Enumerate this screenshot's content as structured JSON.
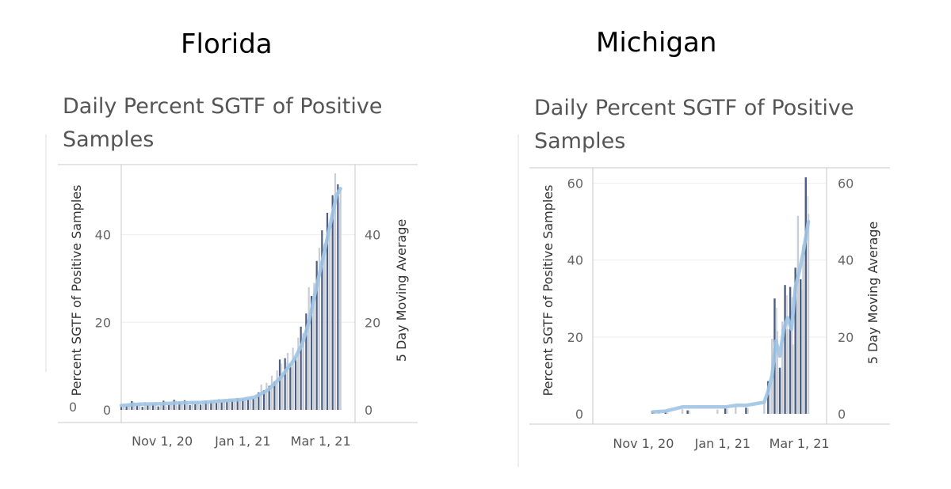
{
  "panels": [
    {
      "state": "Florida"
    },
    {
      "state": "Michigan"
    }
  ],
  "chart_data": [
    {
      "type": "bar",
      "state": "Florida",
      "title": "Daily Percent SGTF of Positive Samples",
      "ylabel": "Percent SGTF of Positive Samples",
      "ylabel_right": "5 Day Moving Average",
      "ylim": [
        0,
        56
      ],
      "yticks": [
        0,
        20,
        40
      ],
      "x_start": "2020-10-01",
      "x_end": "2021-03-27",
      "xticks": [
        {
          "date": "2020-11-01",
          "label": "Nov 1, 20"
        },
        {
          "date": "2021-01-01",
          "label": "Jan 1, 21"
        },
        {
          "date": "2021-03-01",
          "label": "Mar 1, 21"
        }
      ],
      "bars": [
        {
          "date": "2020-10-01",
          "value": 0.8
        },
        {
          "date": "2020-10-03",
          "value": 1.2
        },
        {
          "date": "2020-10-05",
          "value": 0.9
        },
        {
          "date": "2020-10-07",
          "value": 1.5
        },
        {
          "date": "2020-10-09",
          "value": 2.0
        },
        {
          "date": "2020-10-11",
          "value": 1.4
        },
        {
          "date": "2020-10-13",
          "value": 1.0
        },
        {
          "date": "2020-10-15",
          "value": 1.6
        },
        {
          "date": "2020-10-17",
          "value": 0.7
        },
        {
          "date": "2020-10-19",
          "value": 1.8
        },
        {
          "date": "2020-10-21",
          "value": 1.1
        },
        {
          "date": "2020-10-23",
          "value": 0.9
        },
        {
          "date": "2020-10-25",
          "value": 1.3
        },
        {
          "date": "2020-10-27",
          "value": 1.7
        },
        {
          "date": "2020-10-29",
          "value": 0.8
        },
        {
          "date": "2020-10-31",
          "value": 1.4
        },
        {
          "date": "2020-11-02",
          "value": 2.1
        },
        {
          "date": "2020-11-04",
          "value": 0.8
        },
        {
          "date": "2020-11-06",
          "value": 1.2
        },
        {
          "date": "2020-11-08",
          "value": 1.5
        },
        {
          "date": "2020-11-10",
          "value": 2.3
        },
        {
          "date": "2020-11-12",
          "value": 1.0
        },
        {
          "date": "2020-11-14",
          "value": 1.8
        },
        {
          "date": "2020-11-16",
          "value": 1.3
        },
        {
          "date": "2020-11-18",
          "value": 2.2
        },
        {
          "date": "2020-11-20",
          "value": 1.6
        },
        {
          "date": "2020-11-22",
          "value": 1.1
        },
        {
          "date": "2020-11-24",
          "value": 1.9
        },
        {
          "date": "2020-11-26",
          "value": 1.4
        },
        {
          "date": "2020-11-28",
          "value": 2.0
        },
        {
          "date": "2020-11-30",
          "value": 1.2
        },
        {
          "date": "2020-12-02",
          "value": 1.7
        },
        {
          "date": "2020-12-04",
          "value": 2.1
        },
        {
          "date": "2020-12-06",
          "value": 1.5
        },
        {
          "date": "2020-12-08",
          "value": 1.9
        },
        {
          "date": "2020-12-10",
          "value": 2.2
        },
        {
          "date": "2020-12-12",
          "value": 1.6
        },
        {
          "date": "2020-12-14",
          "value": 2.5
        },
        {
          "date": "2020-12-16",
          "value": 1.8
        },
        {
          "date": "2020-12-18",
          "value": 2.4
        },
        {
          "date": "2020-12-20",
          "value": 2.0
        },
        {
          "date": "2020-12-22",
          "value": 2.6
        },
        {
          "date": "2020-12-24",
          "value": 2.2
        },
        {
          "date": "2020-12-26",
          "value": 1.9
        },
        {
          "date": "2020-12-28",
          "value": 2.7
        },
        {
          "date": "2020-12-30",
          "value": 2.3
        },
        {
          "date": "2021-01-01",
          "value": 2.5
        },
        {
          "date": "2021-01-03",
          "value": 2.8
        },
        {
          "date": "2021-01-05",
          "value": 2.4
        },
        {
          "date": "2021-01-07",
          "value": 3.0
        },
        {
          "date": "2021-01-09",
          "value": 2.6
        },
        {
          "date": "2021-01-11",
          "value": 3.2
        },
        {
          "date": "2021-01-13",
          "value": 4.0
        },
        {
          "date": "2021-01-15",
          "value": 5.8
        },
        {
          "date": "2021-01-17",
          "value": 4.5
        },
        {
          "date": "2021-01-19",
          "value": 6.2
        },
        {
          "date": "2021-01-21",
          "value": 5.5
        },
        {
          "date": "2021-01-23",
          "value": 7.8
        },
        {
          "date": "2021-01-25",
          "value": 6.5
        },
        {
          "date": "2021-01-27",
          "value": 9.0
        },
        {
          "date": "2021-01-29",
          "value": 11.5
        },
        {
          "date": "2021-01-31",
          "value": 8.5
        },
        {
          "date": "2021-02-02",
          "value": 11.8
        },
        {
          "date": "2021-02-04",
          "value": 13.0
        },
        {
          "date": "2021-02-06",
          "value": 10.5
        },
        {
          "date": "2021-02-08",
          "value": 14.2
        },
        {
          "date": "2021-02-10",
          "value": 12.0
        },
        {
          "date": "2021-02-12",
          "value": 16.5
        },
        {
          "date": "2021-02-14",
          "value": 19.0
        },
        {
          "date": "2021-02-16",
          "value": 17.5
        },
        {
          "date": "2021-02-18",
          "value": 22.0
        },
        {
          "date": "2021-02-20",
          "value": 28.0
        },
        {
          "date": "2021-02-22",
          "value": 26.0
        },
        {
          "date": "2021-02-24",
          "value": 29.0
        },
        {
          "date": "2021-02-26",
          "value": 34.0
        },
        {
          "date": "2021-02-28",
          "value": 37.0
        },
        {
          "date": "2021-03-02",
          "value": 41.0
        },
        {
          "date": "2021-03-04",
          "value": 38.0
        },
        {
          "date": "2021-03-06",
          "value": 45.0
        },
        {
          "date": "2021-03-08",
          "value": 42.0
        },
        {
          "date": "2021-03-10",
          "value": 49.0
        },
        {
          "date": "2021-03-12",
          "value": 54.0
        },
        {
          "date": "2021-03-14",
          "value": 51.5
        },
        {
          "date": "2021-03-16",
          "value": 50.0
        }
      ],
      "moving_average": [
        {
          "date": "2020-10-01",
          "value": 1.0
        },
        {
          "date": "2020-10-15",
          "value": 1.3
        },
        {
          "date": "2020-11-01",
          "value": 1.4
        },
        {
          "date": "2020-11-15",
          "value": 1.6
        },
        {
          "date": "2020-12-01",
          "value": 1.7
        },
        {
          "date": "2020-12-15",
          "value": 2.0
        },
        {
          "date": "2021-01-01",
          "value": 2.4
        },
        {
          "date": "2021-01-10",
          "value": 2.9
        },
        {
          "date": "2021-01-20",
          "value": 4.5
        },
        {
          "date": "2021-01-30",
          "value": 7.5
        },
        {
          "date": "2021-02-09",
          "value": 11.5
        },
        {
          "date": "2021-02-15",
          "value": 15.0
        },
        {
          "date": "2021-02-20",
          "value": 20.0
        },
        {
          "date": "2021-02-25",
          "value": 27.0
        },
        {
          "date": "2021-03-03",
          "value": 35.0
        },
        {
          "date": "2021-03-08",
          "value": 42.0
        },
        {
          "date": "2021-03-13",
          "value": 49.0
        },
        {
          "date": "2021-03-16",
          "value": 50.5
        }
      ]
    },
    {
      "type": "bar",
      "state": "Michigan",
      "title": "Daily Percent SGTF of Positive Samples",
      "ylabel": "Percent SGTF of Positive Samples",
      "ylabel_right": "5 Day Moving Average",
      "ylim": [
        0,
        64
      ],
      "yticks": [
        0,
        20,
        40,
        60
      ],
      "x_start": "2020-09-23",
      "x_end": "2021-03-22",
      "xticks": [
        {
          "date": "2020-11-01",
          "label": "Nov 1, 20"
        },
        {
          "date": "2021-01-01",
          "label": "Jan 1, 21"
        },
        {
          "date": "2021-03-01",
          "label": "Mar 1, 21"
        }
      ],
      "bars": [
        {
          "date": "2020-11-08",
          "value": 0.6
        },
        {
          "date": "2020-11-13",
          "value": 0.8
        },
        {
          "date": "2020-11-18",
          "value": 0.5
        },
        {
          "date": "2020-12-01",
          "value": 1.2
        },
        {
          "date": "2020-12-05",
          "value": 0.9
        },
        {
          "date": "2020-12-28",
          "value": 1.1
        },
        {
          "date": "2021-01-03",
          "value": 1.4
        },
        {
          "date": "2021-01-11",
          "value": 1.8
        },
        {
          "date": "2021-01-19",
          "value": 1.6
        },
        {
          "date": "2021-02-02",
          "value": 3.0
        },
        {
          "date": "2021-02-05",
          "value": 8.5
        },
        {
          "date": "2021-02-08",
          "value": 19.5
        },
        {
          "date": "2021-02-10",
          "value": 30.0
        },
        {
          "date": "2021-02-12",
          "value": 21.5
        },
        {
          "date": "2021-02-14",
          "value": 12.0
        },
        {
          "date": "2021-02-16",
          "value": 24.0
        },
        {
          "date": "2021-02-18",
          "value": 33.5
        },
        {
          "date": "2021-02-20",
          "value": 22.0
        },
        {
          "date": "2021-02-22",
          "value": 33.0
        },
        {
          "date": "2021-02-24",
          "value": 18.0
        },
        {
          "date": "2021-02-26",
          "value": 38.0
        },
        {
          "date": "2021-02-28",
          "value": 51.5
        },
        {
          "date": "2021-03-02",
          "value": 35.0
        },
        {
          "date": "2021-03-04",
          "value": 44.0
        },
        {
          "date": "2021-03-06",
          "value": 61.5
        },
        {
          "date": "2021-03-08",
          "value": 52.0
        }
      ],
      "moving_average": [
        {
          "date": "2020-11-08",
          "value": 0.5
        },
        {
          "date": "2020-11-18",
          "value": 0.7
        },
        {
          "date": "2020-12-01",
          "value": 1.8
        },
        {
          "date": "2020-12-05",
          "value": 1.8
        },
        {
          "date": "2020-12-28",
          "value": 1.8
        },
        {
          "date": "2021-01-03",
          "value": 1.8
        },
        {
          "date": "2021-01-11",
          "value": 2.2
        },
        {
          "date": "2021-01-19",
          "value": 2.2
        },
        {
          "date": "2021-02-02",
          "value": 3.0
        },
        {
          "date": "2021-02-05",
          "value": 6.0
        },
        {
          "date": "2021-02-08",
          "value": 10.0
        },
        {
          "date": "2021-02-11",
          "value": 19.0
        },
        {
          "date": "2021-02-14",
          "value": 15.0
        },
        {
          "date": "2021-02-17",
          "value": 22.0
        },
        {
          "date": "2021-02-20",
          "value": 25.0
        },
        {
          "date": "2021-02-23",
          "value": 22.0
        },
        {
          "date": "2021-02-26",
          "value": 33.0
        },
        {
          "date": "2021-03-01",
          "value": 37.0
        },
        {
          "date": "2021-03-04",
          "value": 42.0
        },
        {
          "date": "2021-03-08",
          "value": 50.0
        }
      ]
    }
  ]
}
